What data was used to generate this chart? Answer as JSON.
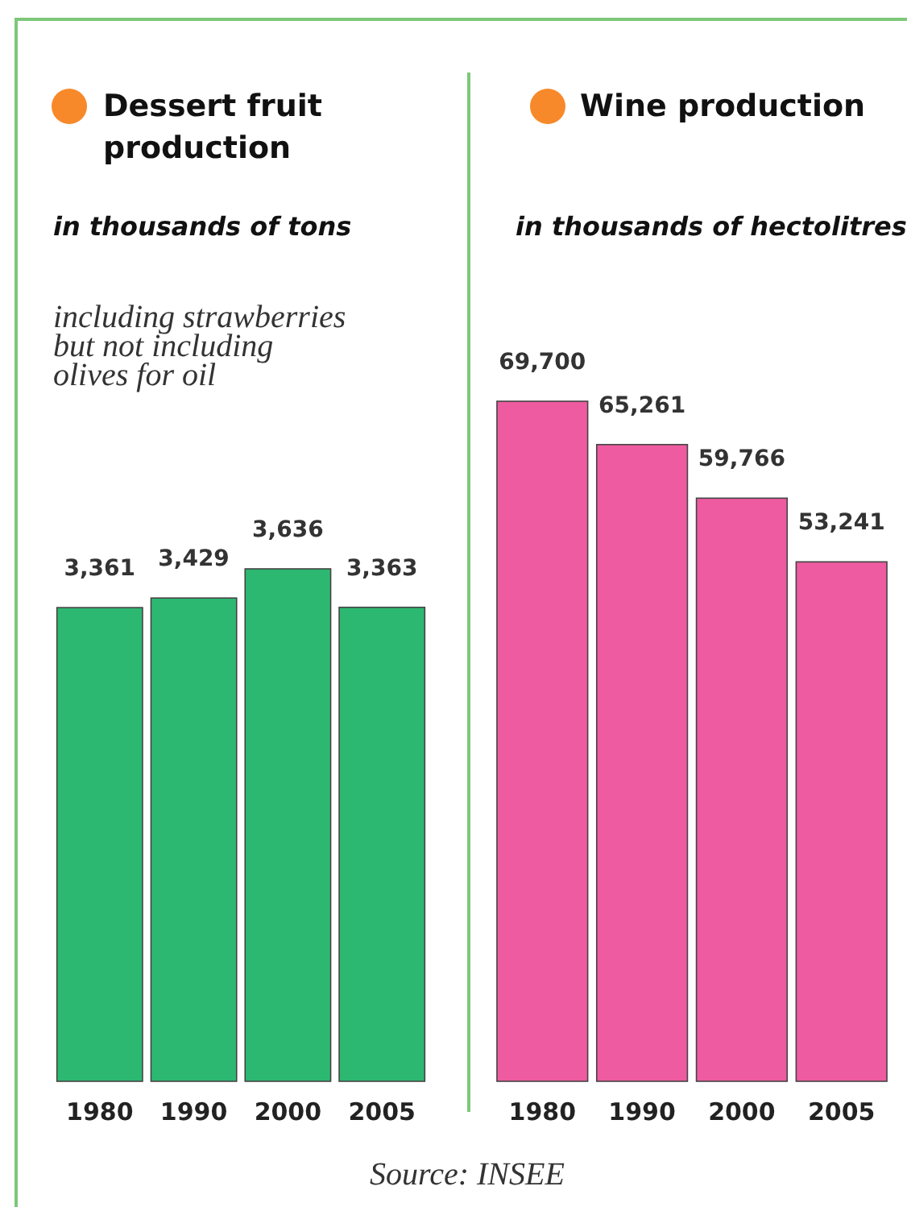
{
  "chart_data": [
    {
      "type": "bar",
      "title": "Dessert fruit production",
      "subtitle": "in thousands of tons",
      "annotations": [
        "including strawberries\nbut not including\nolives for oil"
      ],
      "categories": [
        "1980",
        "1990",
        "2000",
        "2005"
      ],
      "values": [
        3361,
        3429,
        3636,
        3363
      ],
      "color": "#2db872",
      "value_labels": [
        "3,361",
        "3,429",
        "3,636",
        "3,363"
      ]
    },
    {
      "type": "bar",
      "title": "Wine production",
      "subtitle": "in thousands of hectolitres",
      "annotations": [
        "Source: INSEE"
      ],
      "categories": [
        "1980",
        "1990",
        "2000",
        "2005"
      ],
      "values": [
        69700,
        65261,
        59766,
        53241
      ],
      "color": "#ee5ba0",
      "value_labels": [
        "69,700",
        "65,261",
        "59,766",
        "53,241"
      ]
    }
  ]
}
